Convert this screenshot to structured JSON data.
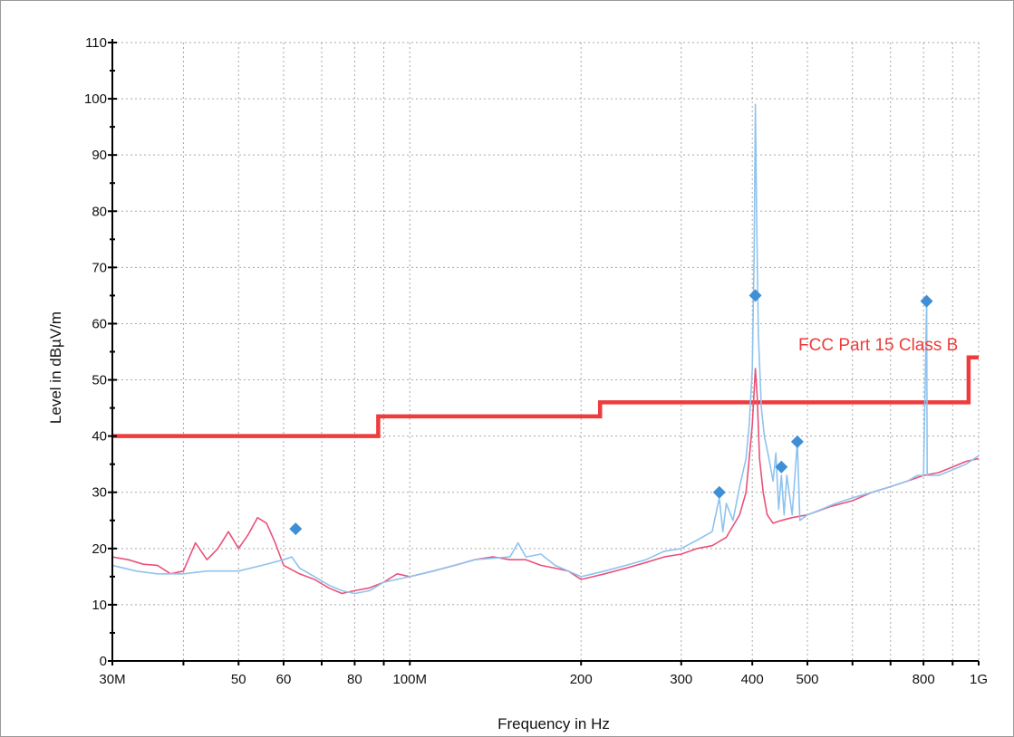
{
  "chart_data": {
    "type": "line",
    "title": "",
    "xlabel": "Frequency in Hz",
    "ylabel": "Level in dBµV/m",
    "x_scale": "log",
    "xlim": [
      30000000,
      1000000000
    ],
    "ylim": [
      0,
      110
    ],
    "grid": true,
    "y_ticks": [
      0,
      10,
      20,
      30,
      40,
      50,
      60,
      70,
      80,
      90,
      100,
      110
    ],
    "y_tick_labels": [
      "0",
      "10",
      "20",
      "30",
      "40",
      "50",
      "60",
      "70",
      "80",
      "90",
      "100",
      "110"
    ],
    "x_ticks": [
      30000000,
      50000000,
      60000000,
      80000000,
      100000000,
      200000000,
      300000000,
      400000000,
      500000000,
      800000000,
      1000000000
    ],
    "x_tick_labels": [
      "30M",
      "50",
      "60",
      "80",
      "100M",
      "200",
      "300",
      "400",
      "500",
      "800",
      "1G"
    ],
    "x_grid": [
      30000000,
      40000000,
      50000000,
      60000000,
      70000000,
      80000000,
      90000000,
      100000000,
      200000000,
      300000000,
      400000000,
      500000000,
      600000000,
      700000000,
      800000000,
      900000000,
      1000000000
    ],
    "colors": {
      "limit": "#ee3b3b",
      "peak": "#e8527a",
      "quasi": "#8ec3ef",
      "marker": "#3f8fd6"
    },
    "limit_line": {
      "name": "FCC Part 15 Class B",
      "points": [
        [
          30000000,
          40
        ],
        [
          88000000,
          40
        ],
        [
          88000000,
          43.5
        ],
        [
          216000000,
          43.5
        ],
        [
          216000000,
          46
        ],
        [
          960000000,
          46
        ],
        [
          960000000,
          54
        ],
        [
          1000000000,
          54
        ]
      ]
    },
    "series": [
      {
        "values": [
          [
            30000000,
            18.5
          ],
          [
            32000000,
            18
          ],
          [
            34000000,
            17.2
          ],
          [
            36000000,
            17
          ],
          [
            38000000,
            15.5
          ],
          [
            40000000,
            16
          ],
          [
            42000000,
            21
          ],
          [
            44000000,
            18
          ],
          [
            46000000,
            20
          ],
          [
            48000000,
            23
          ],
          [
            50000000,
            20
          ],
          [
            52000000,
            22.5
          ],
          [
            54000000,
            25.5
          ],
          [
            56000000,
            24.5
          ],
          [
            58000000,
            21
          ],
          [
            60000000,
            17
          ],
          [
            64000000,
            15.5
          ],
          [
            68000000,
            14.5
          ],
          [
            72000000,
            13
          ],
          [
            76000000,
            12
          ],
          [
            80000000,
            12.5
          ],
          [
            85000000,
            13
          ],
          [
            90000000,
            14
          ],
          [
            95000000,
            15.5
          ],
          [
            100000000,
            15
          ],
          [
            110000000,
            16
          ],
          [
            120000000,
            17
          ],
          [
            130000000,
            18
          ],
          [
            140000000,
            18.5
          ],
          [
            150000000,
            18
          ],
          [
            160000000,
            18
          ],
          [
            170000000,
            17
          ],
          [
            180000000,
            16.5
          ],
          [
            190000000,
            16
          ],
          [
            200000000,
            14.5
          ],
          [
            210000000,
            15
          ],
          [
            220000000,
            15.5
          ],
          [
            240000000,
            16.5
          ],
          [
            260000000,
            17.5
          ],
          [
            280000000,
            18.5
          ],
          [
            300000000,
            19
          ],
          [
            320000000,
            20
          ],
          [
            340000000,
            20.5
          ],
          [
            360000000,
            22
          ],
          [
            380000000,
            26
          ],
          [
            390000000,
            30
          ],
          [
            395000000,
            36
          ],
          [
            400000000,
            42
          ],
          [
            405000000,
            52
          ],
          [
            408000000,
            47
          ],
          [
            412000000,
            36
          ],
          [
            418000000,
            30
          ],
          [
            425000000,
            26
          ],
          [
            435000000,
            24.5
          ],
          [
            450000000,
            25
          ],
          [
            470000000,
            25.5
          ],
          [
            500000000,
            26
          ],
          [
            550000000,
            27.5
          ],
          [
            600000000,
            28.5
          ],
          [
            650000000,
            30
          ],
          [
            700000000,
            31
          ],
          [
            750000000,
            32
          ],
          [
            800000000,
            33
          ],
          [
            850000000,
            33.5
          ],
          [
            900000000,
            34.5
          ],
          [
            950000000,
            35.5
          ],
          [
            1000000000,
            36
          ]
        ]
      },
      {
        "values": [
          [
            30000000,
            17
          ],
          [
            33000000,
            16
          ],
          [
            36000000,
            15.5
          ],
          [
            40000000,
            15.5
          ],
          [
            44000000,
            16
          ],
          [
            50000000,
            16
          ],
          [
            55000000,
            17
          ],
          [
            60000000,
            18
          ],
          [
            62000000,
            18.5
          ],
          [
            64000000,
            16.5
          ],
          [
            68000000,
            15
          ],
          [
            72000000,
            13.5
          ],
          [
            76000000,
            12.5
          ],
          [
            80000000,
            12
          ],
          [
            85000000,
            12.5
          ],
          [
            90000000,
            14
          ],
          [
            100000000,
            15
          ],
          [
            110000000,
            16
          ],
          [
            120000000,
            17
          ],
          [
            130000000,
            18
          ],
          [
            150000000,
            18.5
          ],
          [
            155000000,
            21
          ],
          [
            160000000,
            18.5
          ],
          [
            170000000,
            19
          ],
          [
            180000000,
            17
          ],
          [
            190000000,
            16
          ],
          [
            200000000,
            15
          ],
          [
            210000000,
            15.5
          ],
          [
            220000000,
            16
          ],
          [
            240000000,
            17
          ],
          [
            260000000,
            18
          ],
          [
            280000000,
            19.5
          ],
          [
            300000000,
            20
          ],
          [
            320000000,
            21.5
          ],
          [
            340000000,
            23
          ],
          [
            350000000,
            29
          ],
          [
            355000000,
            23
          ],
          [
            360000000,
            28
          ],
          [
            370000000,
            25
          ],
          [
            380000000,
            31
          ],
          [
            390000000,
            36
          ],
          [
            395000000,
            42
          ],
          [
            400000000,
            52
          ],
          [
            403000000,
            72
          ],
          [
            405000000,
            99
          ],
          [
            407000000,
            80
          ],
          [
            410000000,
            58
          ],
          [
            415000000,
            45
          ],
          [
            420000000,
            40
          ],
          [
            428000000,
            36
          ],
          [
            435000000,
            32
          ],
          [
            440000000,
            37
          ],
          [
            445000000,
            27
          ],
          [
            450000000,
            33
          ],
          [
            455000000,
            26
          ],
          [
            460000000,
            33
          ],
          [
            470000000,
            26
          ],
          [
            480000000,
            39
          ],
          [
            485000000,
            25
          ],
          [
            500000000,
            26
          ],
          [
            530000000,
            27
          ],
          [
            560000000,
            28
          ],
          [
            600000000,
            29
          ],
          [
            650000000,
            30
          ],
          [
            700000000,
            31
          ],
          [
            750000000,
            32
          ],
          [
            780000000,
            33
          ],
          [
            800000000,
            33
          ],
          [
            810000000,
            64
          ],
          [
            812000000,
            33
          ],
          [
            850000000,
            33
          ],
          [
            900000000,
            34
          ],
          [
            950000000,
            35
          ],
          [
            1000000000,
            36.5
          ]
        ]
      }
    ],
    "markers": [
      {
        "x": 63000000,
        "y": 23.5
      },
      {
        "x": 350000000,
        "y": 30
      },
      {
        "x": 405000000,
        "y": 65
      },
      {
        "x": 450000000,
        "y": 34.5
      },
      {
        "x": 480000000,
        "y": 39
      },
      {
        "x": 810000000,
        "y": 64
      }
    ]
  }
}
